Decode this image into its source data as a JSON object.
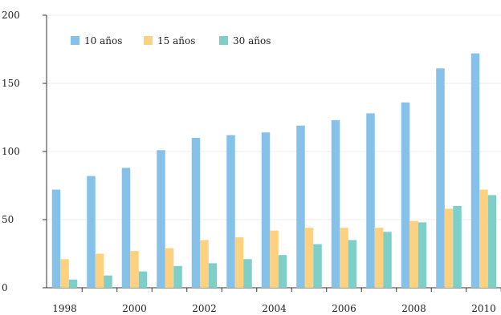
{
  "chart_data": {
    "type": "bar",
    "title": "",
    "xlabel": "",
    "ylabel": "",
    "ylim": [
      0,
      200
    ],
    "y_ticks": [
      0,
      50,
      100,
      150,
      200
    ],
    "x_tick_labels": [
      "1998",
      "2000",
      "2002",
      "2004",
      "2006",
      "2008",
      "2010"
    ],
    "categories": [
      "1998",
      "1999",
      "2000",
      "2001",
      "2002",
      "2003",
      "2004",
      "2005",
      "2006",
      "2007",
      "2008",
      "2009",
      "2010"
    ],
    "grid": "horizontal",
    "legend_position": "top-left",
    "series": [
      {
        "name": "10 años",
        "color": "#86c1ea",
        "values": [
          72,
          82,
          88,
          101,
          110,
          112,
          114,
          119,
          123,
          128,
          136,
          161,
          172
        ]
      },
      {
        "name": "15 años",
        "color": "#fdd17f",
        "values": [
          21,
          25,
          27,
          29,
          35,
          37,
          42,
          44,
          44,
          44,
          49,
          58,
          72
        ]
      },
      {
        "name": "30 años",
        "color": "#7fcfc9",
        "values": [
          6,
          9,
          12,
          16,
          18,
          21,
          24,
          32,
          35,
          41,
          48,
          60,
          68
        ]
      }
    ]
  }
}
